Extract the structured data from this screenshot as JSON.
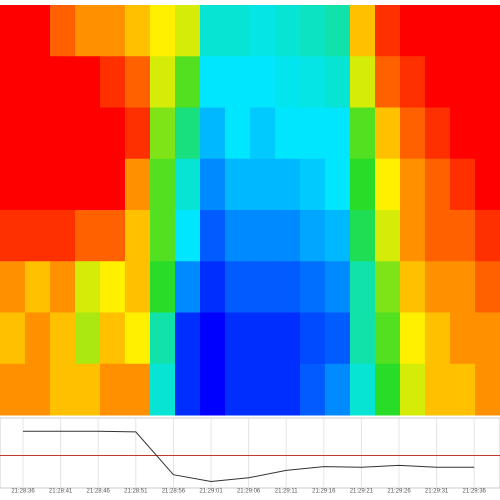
{
  "chart_data": [
    {
      "type": "heatmap",
      "zlim": [
        0,
        1
      ],
      "z": [
        [
          1,
          1,
          0.9,
          0.85,
          0.85,
          0.8,
          0.75,
          0.7,
          0.3,
          0.3,
          0.28,
          0.3,
          0.32,
          0.35,
          0.8,
          0.95,
          1,
          1,
          1,
          1
        ],
        [
          1,
          1,
          1,
          1,
          0.95,
          0.9,
          0.7,
          0.55,
          0.25,
          0.25,
          0.25,
          0.27,
          0.28,
          0.3,
          0.7,
          0.9,
          0.95,
          1,
          1,
          1
        ],
        [
          1,
          1,
          1,
          1,
          1,
          0.95,
          0.6,
          0.4,
          0.2,
          0.25,
          0.22,
          0.25,
          0.25,
          0.25,
          0.55,
          0.8,
          0.9,
          0.95,
          1,
          1
        ],
        [
          1,
          1,
          1,
          1,
          1,
          0.85,
          0.55,
          0.3,
          0.15,
          0.2,
          0.2,
          0.2,
          0.22,
          0.25,
          0.5,
          0.75,
          0.85,
          0.9,
          0.95,
          1
        ],
        [
          0.95,
          0.95,
          0.95,
          0.9,
          0.9,
          0.8,
          0.55,
          0.25,
          0.1,
          0.15,
          0.15,
          0.15,
          0.18,
          0.2,
          0.45,
          0.7,
          0.85,
          0.9,
          0.9,
          0.95
        ],
        [
          0.85,
          0.8,
          0.85,
          0.7,
          0.75,
          0.8,
          0.5,
          0.15,
          0.05,
          0.1,
          0.1,
          0.1,
          0.12,
          0.15,
          0.35,
          0.6,
          0.8,
          0.85,
          0.85,
          0.9
        ],
        [
          0.8,
          0.85,
          0.8,
          0.65,
          0.8,
          0.75,
          0.35,
          0.05,
          0,
          0.05,
          0.05,
          0.05,
          0.08,
          0.1,
          0.35,
          0.55,
          0.75,
          0.8,
          0.85,
          0.85
        ],
        [
          0.85,
          0.85,
          0.8,
          0.8,
          0.85,
          0.85,
          0.3,
          0.05,
          0,
          0.05,
          0.05,
          0.05,
          0.1,
          0.15,
          0.3,
          0.5,
          0.7,
          0.8,
          0.8,
          0.85
        ]
      ]
    },
    {
      "type": "line",
      "categories": [
        "21:28:36",
        "21:28:41",
        "21:28:46",
        "21:28:51",
        "21:28:56",
        "21:29:01",
        "21:29:06",
        "21:29:11",
        "21:29:16",
        "21:29:21",
        "21:29:26",
        "21:29:31",
        "21:29:36"
      ],
      "values": [
        85,
        85,
        85,
        84,
        15,
        4,
        10,
        22,
        28,
        27,
        30,
        27,
        27
      ],
      "color": "#333333",
      "reference": 46,
      "reference_color": "#c0392b",
      "ylim": [
        0,
        100
      ]
    }
  ]
}
